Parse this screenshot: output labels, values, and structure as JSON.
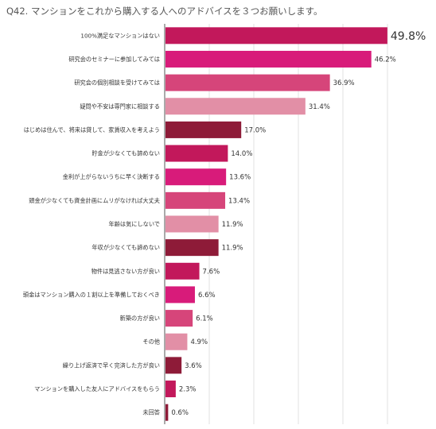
{
  "chart_data": {
    "type": "bar",
    "orientation": "horizontal",
    "title": "Q42. マンションをこれから購入する人へのアドバイスを３つお願いします。",
    "categories": [
      "100%満足なマンションはない",
      "研究会のセミナーに参加してみては",
      "研究会の個別相談を受けてみては",
      "疑問や不安は専門家に相談する",
      "はじめは住んで、将来は貸して、家賃収入を考えよう",
      "貯金が少なくても諦めない",
      "金利が上がらないうちに早く決断する",
      "頭金が少なくても資金計画にムリがなければ大丈夫",
      "年齢は気にしないで",
      "年収が少なくても諦めない",
      "物件は見逃さない方が良い",
      "頭金はマンション購入の１割以上を準備しておくべき",
      "新築の方が良い",
      "その他",
      "繰り上げ返済で早く完済した方が良い",
      "マンションを購入した友人にアドバイスをもらう",
      "未回答"
    ],
    "values": [
      49.8,
      46.2,
      36.9,
      31.4,
      17.0,
      14.0,
      13.6,
      13.4,
      11.9,
      11.9,
      7.6,
      6.6,
      6.1,
      4.9,
      3.6,
      2.3,
      0.6
    ],
    "value_labels": [
      "49.8%",
      "46.2%",
      "36.9%",
      "31.4%",
      "17.0%",
      "14.0%",
      "13.6%",
      "13.4%",
      "11.9%",
      "11.9%",
      "7.6%",
      "6.6%",
      "6.1%",
      "4.9%",
      "3.6%",
      "2.3%",
      "0.6%"
    ],
    "colors": [
      "#c2185b",
      "#d81b7a",
      "#d6457a",
      "#e28fa6",
      "#8e1b38",
      "#c2185b",
      "#d81b7a",
      "#d6457a",
      "#e28fa6",
      "#8e1b38",
      "#c2185b",
      "#d81b7a",
      "#d6457a",
      "#e28fa6",
      "#8e1b38",
      "#c2185b",
      "#8e1b38"
    ],
    "xlim": [
      0,
      60
    ],
    "grid": true,
    "legend": "none"
  }
}
